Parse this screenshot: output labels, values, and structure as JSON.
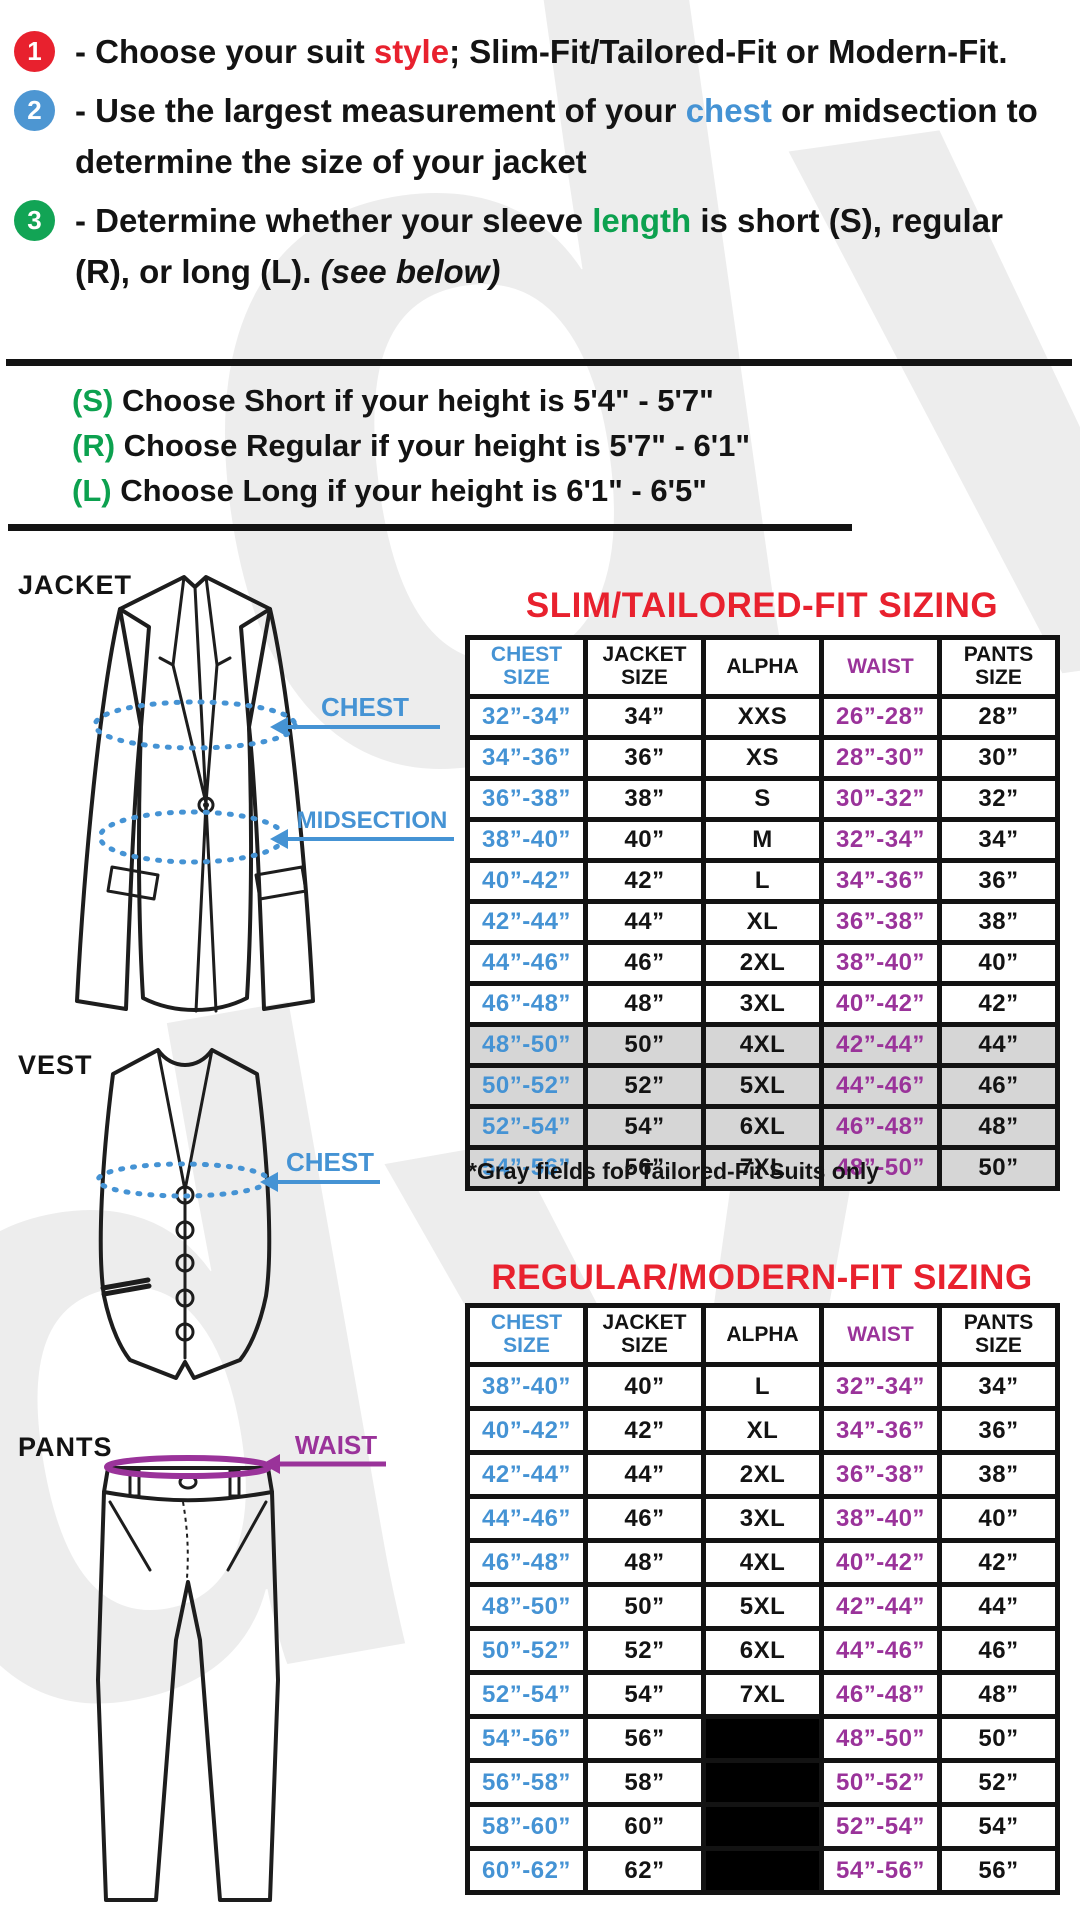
{
  "instructions": [
    {
      "number": "1",
      "circle_color": "#e8212e",
      "pre": "- Choose your suit ",
      "keyword": "style",
      "keyword_color": "#e8212e",
      "post": "; Slim-Fit/Tailored-Fit or Modern-Fit.",
      "italic": ""
    },
    {
      "number": "2",
      "circle_color": "#4d96d2",
      "pre": "- Use the largest measurement of your ",
      "keyword": "chest",
      "keyword_color": "#4593d4",
      "post": " or midsection to determine the size of your jacket",
      "italic": ""
    },
    {
      "number": "3",
      "circle_color": "#12a455",
      "pre": "- Determine whether your sleeve ",
      "keyword": "length",
      "keyword_color": "#0ca14f",
      "post": " is short (S), regular (R), or long (L). ",
      "italic": "(see below)"
    }
  ],
  "height_rules": [
    {
      "tag": "(S)",
      "text": "Choose Short if your height is 5'4\" - 5'7\""
    },
    {
      "tag": "(R)",
      "text": "Choose Regular if your height is  5'7\" - 6'1\""
    },
    {
      "tag": "(L)",
      "text": "Choose Long if your height is  6'1\" - 6'5\""
    }
  ],
  "diagrams": {
    "jacket": {
      "label": "JACKET",
      "chest_label": "CHEST",
      "midsection_label": "MIDSECTION"
    },
    "vest": {
      "label": "VEST",
      "chest_label": "CHEST"
    },
    "pants": {
      "label": "PANTS",
      "waist_label": "WAIST"
    }
  },
  "slim_table": {
    "title": "SLIM/TAILORED-FIT SIZING",
    "headers": [
      "CHEST SIZE",
      "JACKET SIZE",
      "ALPHA",
      "WAIST",
      "PANTS SIZE"
    ],
    "rows": [
      {
        "cells": [
          "32”-34”",
          "34”",
          "XXS",
          "26”-28”",
          "28”"
        ],
        "gray": false
      },
      {
        "cells": [
          "34”-36”",
          "36”",
          "XS",
          "28”-30”",
          "30”"
        ],
        "gray": false
      },
      {
        "cells": [
          "36”-38”",
          "38”",
          "S",
          "30”-32”",
          "32”"
        ],
        "gray": false
      },
      {
        "cells": [
          "38”-40”",
          "40”",
          "M",
          "32”-34”",
          "34”"
        ],
        "gray": false
      },
      {
        "cells": [
          "40”-42”",
          "42”",
          "L",
          "34”-36”",
          "36”"
        ],
        "gray": false
      },
      {
        "cells": [
          "42”-44”",
          "44”",
          "XL",
          "36”-38”",
          "38”"
        ],
        "gray": false
      },
      {
        "cells": [
          "44”-46”",
          "46”",
          "2XL",
          "38”-40”",
          "40”"
        ],
        "gray": false
      },
      {
        "cells": [
          "46”-48”",
          "48”",
          "3XL",
          "40”-42”",
          "42”"
        ],
        "gray": false
      },
      {
        "cells": [
          "48”-50”",
          "50”",
          "4XL",
          "42”-44”",
          "44”"
        ],
        "gray": true
      },
      {
        "cells": [
          "50”-52”",
          "52”",
          "5XL",
          "44”-46”",
          "46”"
        ],
        "gray": true
      },
      {
        "cells": [
          "52”-54”",
          "54”",
          "6XL",
          "46”-48”",
          "48”"
        ],
        "gray": true
      },
      {
        "cells": [
          "54”-56”",
          "56”",
          "7XL",
          "48”-50”",
          "50”"
        ],
        "gray": true
      }
    ],
    "note": "*Gray fields for Tailored-Fit Suits only"
  },
  "regular_table": {
    "title": "REGULAR/MODERN-FIT SIZING",
    "headers": [
      "CHEST SIZE",
      "JACKET SIZE",
      "ALPHA",
      "WAIST",
      "PANTS SIZE"
    ],
    "rows": [
      {
        "cells": [
          "38”-40”",
          "40”",
          "L",
          "32”-34”",
          "34”"
        ],
        "gray": false
      },
      {
        "cells": [
          "40”-42”",
          "42”",
          "XL",
          "34”-36”",
          "36”"
        ],
        "gray": false
      },
      {
        "cells": [
          "42”-44”",
          "44”",
          "2XL",
          "36”-38”",
          "38”"
        ],
        "gray": false
      },
      {
        "cells": [
          "44”-46”",
          "46”",
          "3XL",
          "38”-40”",
          "40”"
        ],
        "gray": false
      },
      {
        "cells": [
          "46”-48”",
          "48”",
          "4XL",
          "40”-42”",
          "42”"
        ],
        "gray": false
      },
      {
        "cells": [
          "48”-50”",
          "50”",
          "5XL",
          "42”-44”",
          "44”"
        ],
        "gray": false
      },
      {
        "cells": [
          "50”-52”",
          "52”",
          "6XL",
          "44”-46”",
          "46”"
        ],
        "gray": false
      },
      {
        "cells": [
          "52”-54”",
          "54”",
          "7XL",
          "46”-48”",
          "48”"
        ],
        "gray": false
      },
      {
        "cells": [
          "54”-56”",
          "56”",
          null,
          "48”-50”",
          "50”"
        ],
        "gray": false
      },
      {
        "cells": [
          "56”-58”",
          "58”",
          null,
          "50”-52”",
          "52”"
        ],
        "gray": false
      },
      {
        "cells": [
          "58”-60”",
          "60”",
          null,
          "52”-54”",
          "54”"
        ],
        "gray": false
      },
      {
        "cells": [
          "60”-62”",
          "62”",
          null,
          "54”-56”",
          "56”"
        ],
        "gray": false
      }
    ]
  },
  "colors": {
    "red": "#e8212e",
    "blue": "#4593d4",
    "green": "#0ca14f",
    "purple": "#9a339a",
    "gray_row": "#d6d6d6",
    "black": "#131313"
  }
}
